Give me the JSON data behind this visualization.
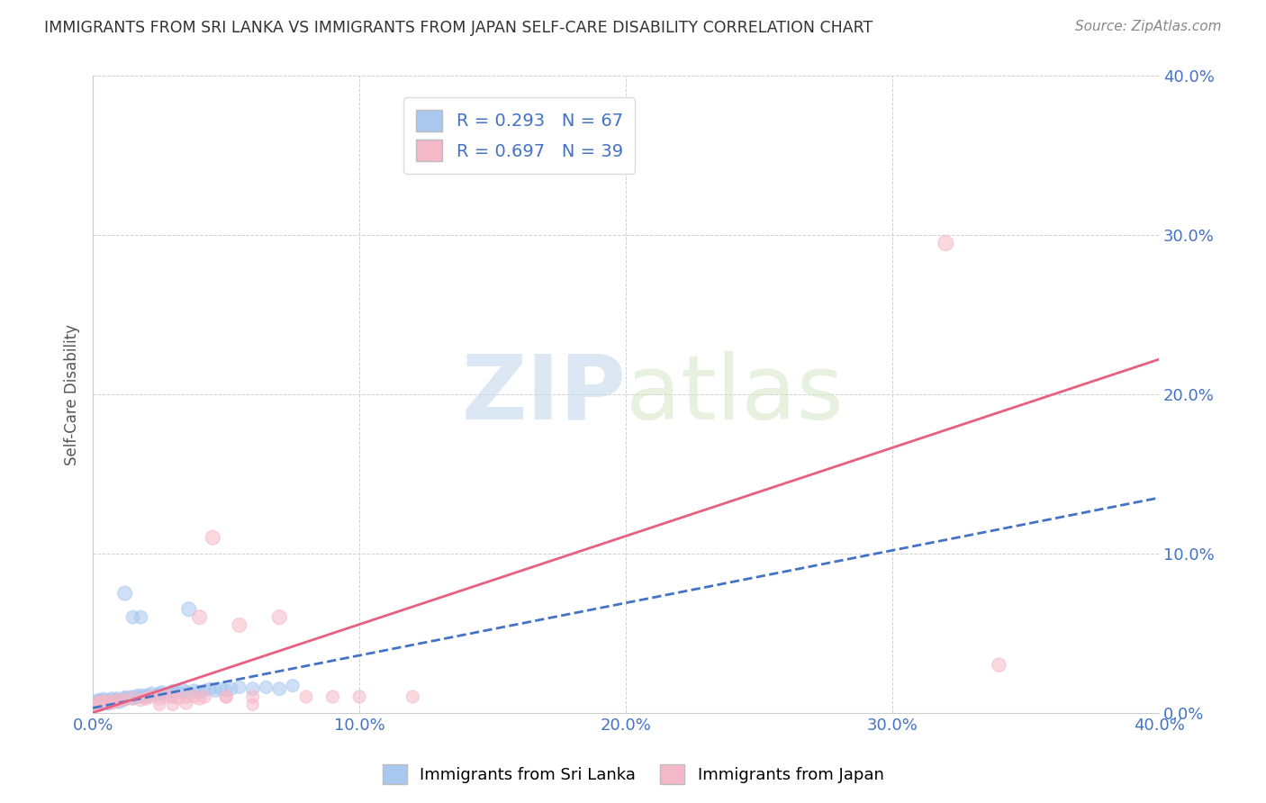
{
  "title": "IMMIGRANTS FROM SRI LANKA VS IMMIGRANTS FROM JAPAN SELF-CARE DISABILITY CORRELATION CHART",
  "source": "Source: ZipAtlas.com",
  "ylabel": "Self-Care Disability",
  "xlim": [
    0.0,
    0.4
  ],
  "ylim": [
    0.0,
    0.4
  ],
  "xticks": [
    0.0,
    0.1,
    0.2,
    0.3,
    0.4
  ],
  "yticks": [
    0.0,
    0.1,
    0.2,
    0.3,
    0.4
  ],
  "sri_lanka_R": 0.293,
  "sri_lanka_N": 67,
  "japan_R": 0.697,
  "japan_N": 39,
  "sri_lanka_color": "#a8c8f0",
  "japan_color": "#f5b8c8",
  "sri_lanka_line_color": "#4472c4",
  "japan_line_color": "#e86080",
  "watermark_zip": "ZIP",
  "watermark_atlas": "atlas",
  "sri_lanka_line_x": [
    0.0,
    0.4
  ],
  "sri_lanka_line_y": [
    0.003,
    0.135
  ],
  "japan_line_x": [
    0.0,
    0.4
  ],
  "japan_line_y": [
    0.0,
    0.222
  ],
  "sri_lanka_points_x": [
    0.001,
    0.001,
    0.002,
    0.002,
    0.002,
    0.003,
    0.003,
    0.003,
    0.003,
    0.004,
    0.004,
    0.004,
    0.005,
    0.005,
    0.005,
    0.006,
    0.006,
    0.006,
    0.007,
    0.007,
    0.008,
    0.008,
    0.009,
    0.009,
    0.01,
    0.01,
    0.011,
    0.012,
    0.012,
    0.013,
    0.014,
    0.015,
    0.015,
    0.016,
    0.017,
    0.018,
    0.019,
    0.02,
    0.021,
    0.022,
    0.024,
    0.025,
    0.026,
    0.028,
    0.03,
    0.03,
    0.032,
    0.034,
    0.035,
    0.036,
    0.038,
    0.04,
    0.042,
    0.044,
    0.046,
    0.048,
    0.05,
    0.052,
    0.055,
    0.06,
    0.065,
    0.07,
    0.075,
    0.01,
    0.012,
    0.015,
    0.018
  ],
  "sri_lanka_points_y": [
    0.005,
    0.007,
    0.006,
    0.008,
    0.004,
    0.006,
    0.007,
    0.005,
    0.008,
    0.006,
    0.007,
    0.009,
    0.006,
    0.007,
    0.008,
    0.006,
    0.007,
    0.008,
    0.007,
    0.009,
    0.007,
    0.008,
    0.007,
    0.009,
    0.007,
    0.008,
    0.008,
    0.009,
    0.01,
    0.009,
    0.01,
    0.009,
    0.01,
    0.01,
    0.011,
    0.01,
    0.011,
    0.01,
    0.011,
    0.012,
    0.011,
    0.012,
    0.013,
    0.012,
    0.013,
    0.014,
    0.013,
    0.014,
    0.013,
    0.065,
    0.014,
    0.013,
    0.014,
    0.015,
    0.014,
    0.015,
    0.014,
    0.015,
    0.016,
    0.015,
    0.016,
    0.015,
    0.017,
    0.008,
    0.075,
    0.06,
    0.06
  ],
  "sri_lanka_sizes": [
    120,
    90,
    110,
    100,
    80,
    120,
    110,
    90,
    100,
    120,
    100,
    90,
    110,
    100,
    90,
    120,
    100,
    90,
    110,
    100,
    110,
    100,
    110,
    100,
    120,
    100,
    110,
    100,
    90,
    100,
    100,
    110,
    90,
    100,
    100,
    110,
    100,
    110,
    100,
    110,
    100,
    110,
    100,
    110,
    100,
    90,
    100,
    110,
    100,
    130,
    100,
    110,
    100,
    100,
    110,
    100,
    110,
    100,
    100,
    110,
    100,
    110,
    100,
    90,
    130,
    110,
    110
  ],
  "japan_points_x": [
    0.001,
    0.002,
    0.003,
    0.004,
    0.005,
    0.006,
    0.007,
    0.008,
    0.01,
    0.012,
    0.015,
    0.018,
    0.02,
    0.022,
    0.025,
    0.028,
    0.03,
    0.032,
    0.035,
    0.038,
    0.04,
    0.042,
    0.045,
    0.05,
    0.055,
    0.06,
    0.07,
    0.08,
    0.09,
    0.1,
    0.12,
    0.025,
    0.03,
    0.035,
    0.04,
    0.05,
    0.06,
    0.34,
    0.32
  ],
  "japan_points_y": [
    0.005,
    0.006,
    0.007,
    0.006,
    0.007,
    0.007,
    0.006,
    0.007,
    0.008,
    0.008,
    0.009,
    0.008,
    0.009,
    0.01,
    0.009,
    0.01,
    0.01,
    0.009,
    0.01,
    0.01,
    0.009,
    0.01,
    0.11,
    0.01,
    0.055,
    0.01,
    0.06,
    0.01,
    0.01,
    0.01,
    0.01,
    0.005,
    0.005,
    0.006,
    0.06,
    0.01,
    0.005,
    0.03,
    0.295
  ],
  "japan_sizes": [
    100,
    110,
    100,
    110,
    100,
    110,
    100,
    110,
    110,
    100,
    110,
    100,
    110,
    100,
    110,
    100,
    110,
    100,
    110,
    100,
    110,
    100,
    130,
    100,
    130,
    100,
    130,
    100,
    100,
    100,
    100,
    90,
    90,
    100,
    130,
    100,
    90,
    120,
    150
  ]
}
